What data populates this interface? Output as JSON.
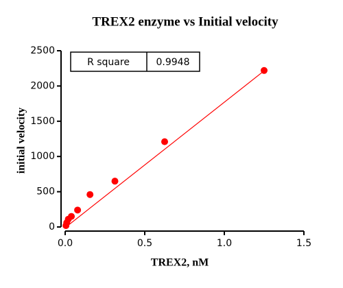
{
  "chart_data": {
    "type": "scatter",
    "title": "TREX2 enzyme vs Initial velocity",
    "x_label": "TREX2, nM",
    "y_label": "initial velocity",
    "series": [
      {
        "color": "#ff0000",
        "x": [
          1.25,
          0.625,
          0.3125,
          0.156,
          0.078,
          0.039,
          0.0195,
          0.0098,
          0.0049
        ],
        "values": [
          2220,
          1210,
          650,
          460,
          240,
          150,
          110,
          60,
          20
        ]
      }
    ],
    "fit_line": {
      "color": "#ff0000",
      "x": [
        0,
        1.25
      ],
      "values": [
        -10,
        2215
      ]
    },
    "annotation_table": {
      "label": "R square",
      "value": "0.9948"
    },
    "xlim": [
      0,
      1.5
    ],
    "xticks": [
      {
        "value": 0,
        "label": "0.0"
      },
      {
        "value": 0.5,
        "label": "0.5"
      },
      {
        "value": 1,
        "label": "1.0"
      },
      {
        "value": 1.5,
        "label": "1.5"
      }
    ],
    "ylim": [
      0,
      2500
    ],
    "yticks": [
      0,
      500,
      1000,
      1500,
      2000,
      2500
    ],
    "grid": false
  }
}
